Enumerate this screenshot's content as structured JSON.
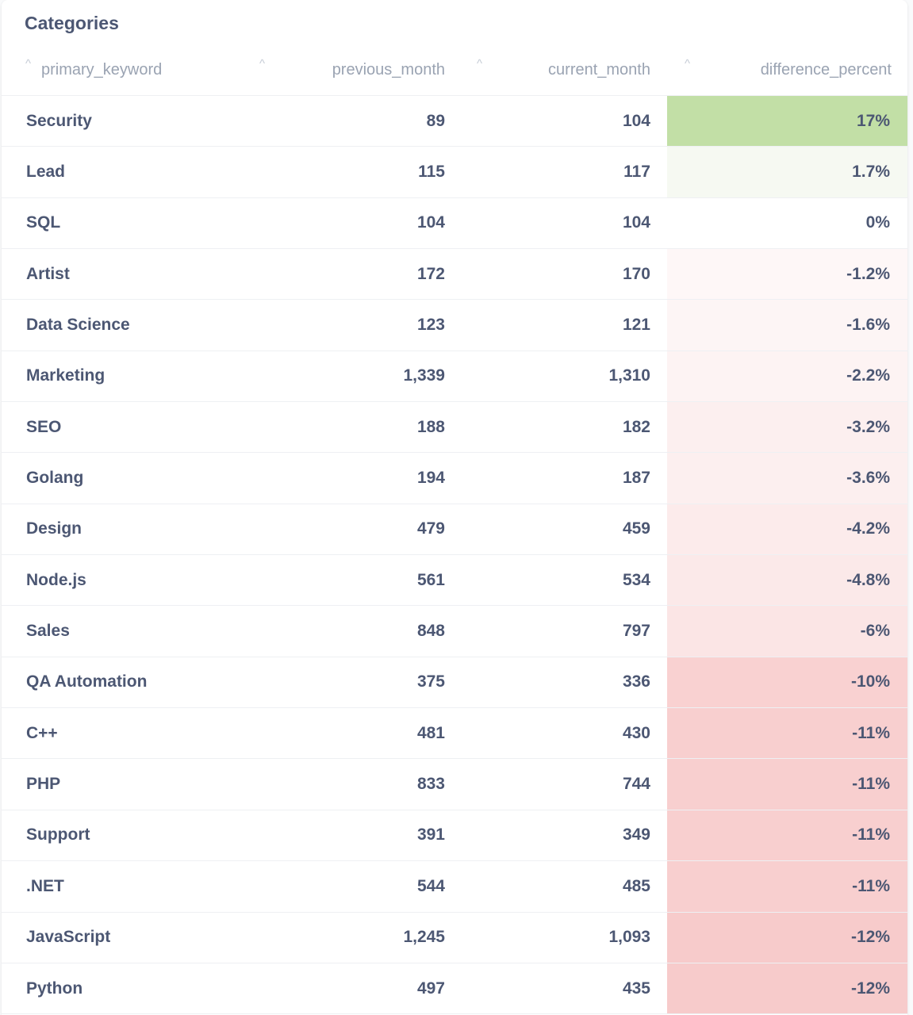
{
  "card": {
    "title": "Categories"
  },
  "table": {
    "columns": [
      {
        "key": "primary_keyword",
        "label": "primary_keyword",
        "sort_icon": "sort-chevron-up-icon"
      },
      {
        "key": "previous_month",
        "label": "previous_month",
        "sort_icon": "sort-chevron-up-icon"
      },
      {
        "key": "current_month",
        "label": "current_month",
        "sort_icon": "sort-chevron-up-icon"
      },
      {
        "key": "difference_percent",
        "label": "difference_percent",
        "sort_icon": "sort-chevron-up-icon"
      }
    ],
    "rows": [
      {
        "primary_keyword": "Security",
        "previous_month": "89",
        "current_month": "104",
        "difference_percent": "17%",
        "cell_color": "#c2dfa6"
      },
      {
        "primary_keyword": "Lead",
        "previous_month": "115",
        "current_month": "117",
        "difference_percent": "1.7%",
        "cell_color": "#f6f9f2"
      },
      {
        "primary_keyword": "SQL",
        "previous_month": "104",
        "current_month": "104",
        "difference_percent": "0%",
        "cell_color": "#ffffff"
      },
      {
        "primary_keyword": "Artist",
        "previous_month": "172",
        "current_month": "170",
        "difference_percent": "-1.2%",
        "cell_color": "#fef7f7"
      },
      {
        "primary_keyword": "Data Science",
        "previous_month": "123",
        "current_month": "121",
        "difference_percent": "-1.6%",
        "cell_color": "#fdf5f5"
      },
      {
        "primary_keyword": "Marketing",
        "previous_month": "1,339",
        "current_month": "1,310",
        "difference_percent": "-2.2%",
        "cell_color": "#fdf3f3"
      },
      {
        "primary_keyword": "SEO",
        "previous_month": "188",
        "current_month": "182",
        "difference_percent": "-3.2%",
        "cell_color": "#fcefef"
      },
      {
        "primary_keyword": "Golang",
        "previous_month": "194",
        "current_month": "187",
        "difference_percent": "-3.6%",
        "cell_color": "#fcefef"
      },
      {
        "primary_keyword": "Design",
        "previous_month": "479",
        "current_month": "459",
        "difference_percent": "-4.2%",
        "cell_color": "#fcebeb"
      },
      {
        "primary_keyword": "Node.js",
        "previous_month": "561",
        "current_month": "534",
        "difference_percent": "-4.8%",
        "cell_color": "#fbe9e9"
      },
      {
        "primary_keyword": "Sales",
        "previous_month": "848",
        "current_month": "797",
        "difference_percent": "-6%",
        "cell_color": "#fbe5e5"
      },
      {
        "primary_keyword": "QA Automation",
        "previous_month": "375",
        "current_month": "336",
        "difference_percent": "-10%",
        "cell_color": "#f9d1d1"
      },
      {
        "primary_keyword": "C++",
        "previous_month": "481",
        "current_month": "430",
        "difference_percent": "-11%",
        "cell_color": "#f8cfcf"
      },
      {
        "primary_keyword": "PHP",
        "previous_month": "833",
        "current_month": "744",
        "difference_percent": "-11%",
        "cell_color": "#f8cfcf"
      },
      {
        "primary_keyword": "Support",
        "previous_month": "391",
        "current_month": "349",
        "difference_percent": "-11%",
        "cell_color": "#f8cfcf"
      },
      {
        "primary_keyword": ".NET",
        "previous_month": "544",
        "current_month": "485",
        "difference_percent": "-11%",
        "cell_color": "#f8cfcf"
      },
      {
        "primary_keyword": "JavaScript",
        "previous_month": "1,245",
        "current_month": "1,093",
        "difference_percent": "-12%",
        "cell_color": "#f7cbcb"
      },
      {
        "primary_keyword": "Python",
        "previous_month": "497",
        "current_month": "435",
        "difference_percent": "-12%",
        "cell_color": "#f7cbcb"
      }
    ]
  }
}
